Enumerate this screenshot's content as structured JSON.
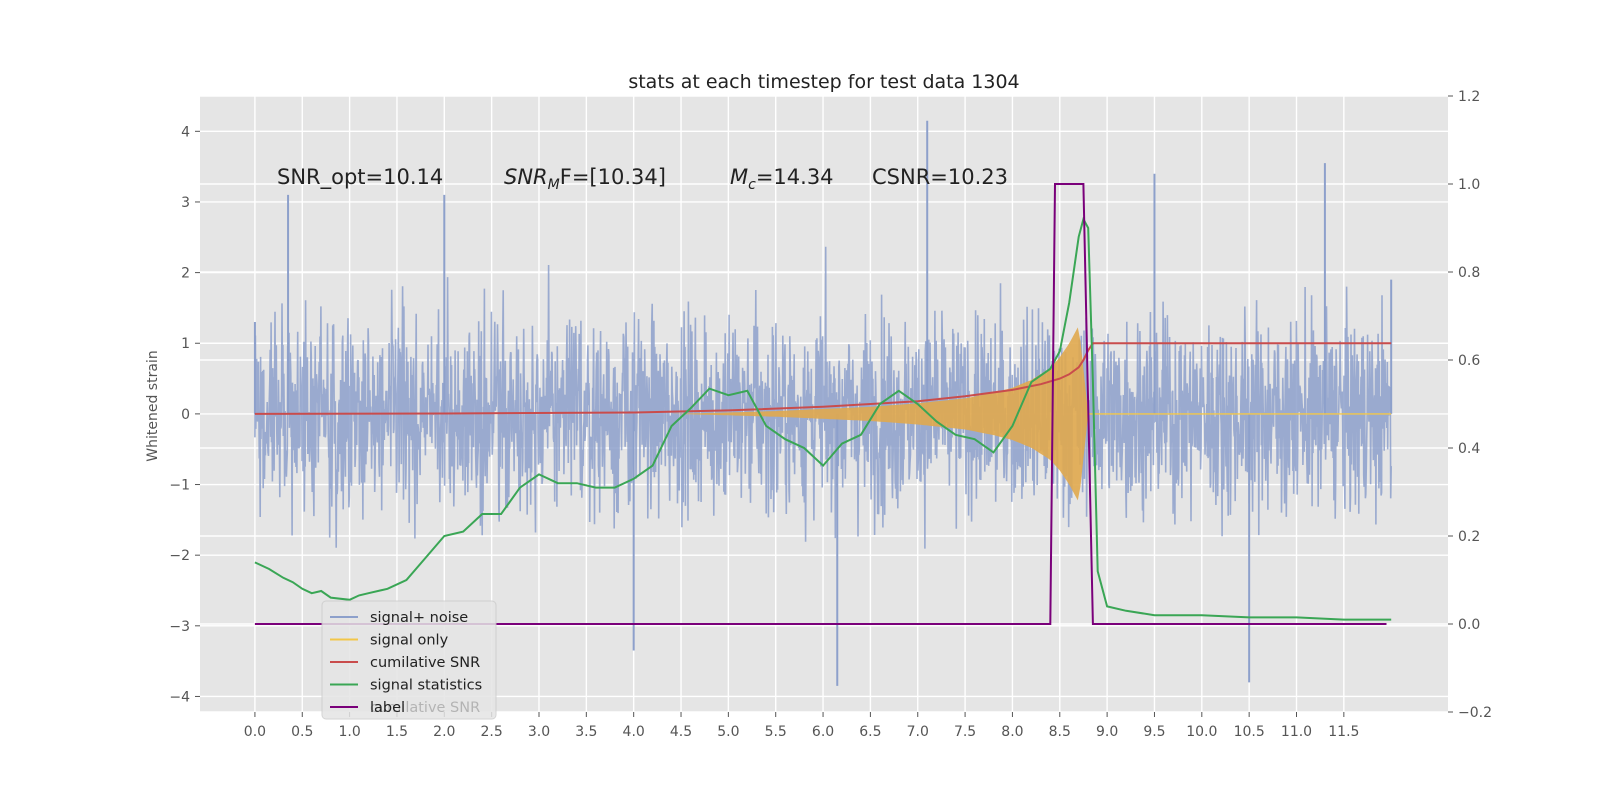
{
  "chart_data": {
    "type": "line",
    "title": "stats at each timestep for test data 1304",
    "xlabel": "",
    "ylabel": "Whitened strain",
    "xlim": [
      -0.58,
      12.6
    ],
    "ylim": [
      -4.22,
      4.5
    ],
    "y2lim": [
      -0.2,
      1.2
    ],
    "grid": true,
    "x_ticks": [
      "0.0",
      "0.5",
      "1.0",
      "1.5",
      "2.0",
      "2.5",
      "3.0",
      "3.5",
      "4.0",
      "4.5",
      "5.0",
      "5.5",
      "6.0",
      "6.5",
      "7.0",
      "7.5",
      "8.0",
      "8.5",
      "9.0",
      "9.5",
      "10.0",
      "10.5",
      "11.0",
      "11.5"
    ],
    "y_ticks": [
      "4",
      "3",
      "2",
      "1",
      "0",
      "−1",
      "−2",
      "−3",
      "−4"
    ],
    "y2_ticks": [
      "1.2",
      "1.0",
      "0.8",
      "0.6",
      "0.4",
      "0.2",
      "0.0",
      "−0.2"
    ],
    "annotations": [
      "SNR_opt=10.14",
      "SNR_MF=[10.34]",
      "M_c=14.34",
      "CSNR=10.23"
    ],
    "annotation_parts": {
      "snr_opt": "SNR_opt=10.14",
      "snr_mf_main": "SNR",
      "snr_mf_sub": "M",
      "snr_mf_rest": "F=[10.34]",
      "mc_main": "M",
      "mc_sub": "c",
      "mc_rest": "=14.34",
      "csnr": "CSNR=10.23"
    },
    "legend": {
      "location": "lower-left",
      "entries": [
        {
          "label": "signal+ noise",
          "color": "#8da0cb"
        },
        {
          "label": "signal only",
          "color": "#f2c649"
        },
        {
          "label": "cumilative SNR",
          "color": "#c94c4c"
        },
        {
          "label": "signal statistics",
          "color": "#3aa655"
        },
        {
          "label": "label",
          "color": "#7a007a"
        }
      ],
      "ghost_text": "cumilative SNR"
    },
    "series": [
      {
        "name": "signal+ noise",
        "axis": "left",
        "color": "#8da0cb",
        "description": "whitened noise plus signal, sampled densely, amplitude about ±2 with peaks to ±4",
        "envelope_y": [
          -2.3,
          2.1
        ],
        "extremes": [
          {
            "x": 0.0,
            "y": 1.3
          },
          {
            "x": 0.35,
            "y": 3.1
          },
          {
            "x": 2.0,
            "y": 3.1
          },
          {
            "x": 4.0,
            "y": -3.35
          },
          {
            "x": 6.15,
            "y": -3.85
          },
          {
            "x": 7.1,
            "y": 4.15
          },
          {
            "x": 9.5,
            "y": 3.4
          },
          {
            "x": 10.5,
            "y": -3.8
          },
          {
            "x": 11.3,
            "y": 3.55
          },
          {
            "x": 12.0,
            "y": 1.9
          }
        ]
      },
      {
        "name": "signal only",
        "axis": "left",
        "color": "#f2c649",
        "x": [
          4.4,
          5.0,
          5.5,
          6.0,
          6.5,
          7.0,
          7.5,
          7.8,
          8.0,
          8.2,
          8.4,
          8.5,
          8.6,
          8.7,
          8.8
        ],
        "amplitude": [
          0.0,
          0.02,
          0.04,
          0.07,
          0.1,
          0.15,
          0.22,
          0.3,
          0.37,
          0.48,
          0.65,
          0.8,
          1.0,
          1.25,
          0.0
        ]
      },
      {
        "name": "cumilative SNR",
        "axis": "left",
        "color": "#c94c4c",
        "x": [
          0.0,
          2.0,
          4.0,
          5.0,
          6.0,
          7.0,
          7.5,
          8.0,
          8.3,
          8.5,
          8.6,
          8.7,
          8.75,
          8.8,
          8.85,
          12.0
        ],
        "y": [
          0.0,
          0.005,
          0.02,
          0.05,
          0.1,
          0.18,
          0.25,
          0.34,
          0.42,
          0.5,
          0.56,
          0.66,
          0.76,
          0.9,
          1.0,
          1.0
        ]
      },
      {
        "name": "signal statistics",
        "axis": "right",
        "color": "#3aa655",
        "x": [
          0.0,
          0.15,
          0.3,
          0.4,
          0.5,
          0.6,
          0.7,
          0.8,
          1.0,
          1.1,
          1.2,
          1.4,
          1.6,
          1.8,
          2.0,
          2.2,
          2.4,
          2.6,
          2.8,
          3.0,
          3.2,
          3.4,
          3.6,
          3.8,
          4.0,
          4.2,
          4.4,
          4.6,
          4.8,
          5.0,
          5.2,
          5.4,
          5.6,
          5.8,
          6.0,
          6.2,
          6.4,
          6.6,
          6.8,
          7.0,
          7.2,
          7.4,
          7.6,
          7.8,
          8.0,
          8.2,
          8.4,
          8.5,
          8.6,
          8.7,
          8.75,
          8.8,
          8.85,
          8.9,
          9.0,
          9.2,
          9.5,
          10.0,
          10.5,
          11.0,
          11.5,
          12.0
        ],
        "y": [
          0.14,
          0.125,
          0.105,
          0.095,
          0.08,
          0.07,
          0.075,
          0.06,
          0.055,
          0.065,
          0.07,
          0.08,
          0.1,
          0.15,
          0.2,
          0.21,
          0.25,
          0.25,
          0.31,
          0.34,
          0.32,
          0.32,
          0.31,
          0.31,
          0.33,
          0.36,
          0.45,
          0.49,
          0.535,
          0.52,
          0.53,
          0.45,
          0.42,
          0.4,
          0.36,
          0.41,
          0.43,
          0.5,
          0.53,
          0.5,
          0.46,
          0.43,
          0.42,
          0.39,
          0.45,
          0.55,
          0.58,
          0.62,
          0.73,
          0.88,
          0.92,
          0.9,
          0.55,
          0.12,
          0.04,
          0.03,
          0.02,
          0.02,
          0.015,
          0.015,
          0.01,
          0.01
        ]
      },
      {
        "name": "label",
        "axis": "right",
        "color": "#7a007a",
        "x": [
          0.0,
          8.4,
          8.45,
          8.75,
          8.85,
          11.95
        ],
        "y": [
          0.0,
          0.0,
          1.0,
          1.0,
          0.0,
          0.0
        ]
      }
    ]
  }
}
